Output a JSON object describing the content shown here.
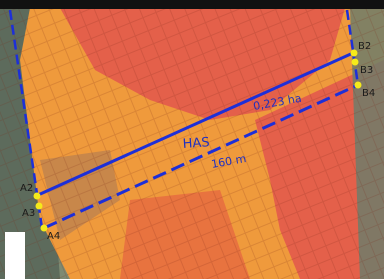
{
  "map": {
    "points": [
      "A2",
      "A3",
      "A4",
      "B2",
      "B3",
      "B4"
    ],
    "line_label": "HAS",
    "area_label": "0,223 ha",
    "length_label": "160 m"
  }
}
